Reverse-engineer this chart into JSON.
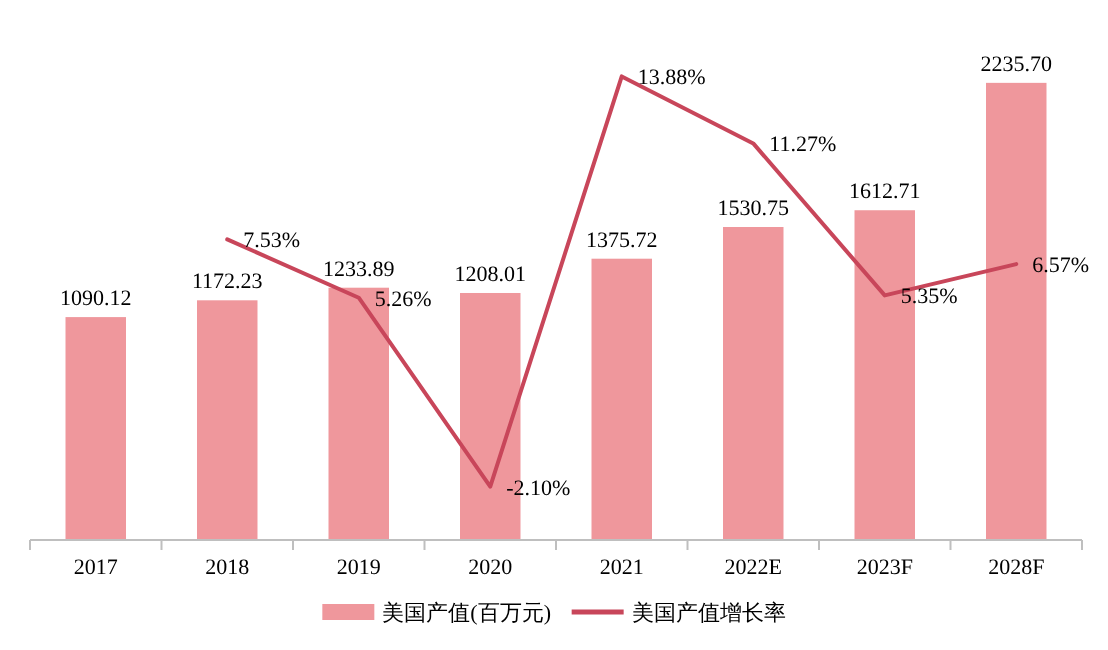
{
  "chart_data": {
    "type": "bar",
    "categories": [
      "2017",
      "2018",
      "2019",
      "2020",
      "2021",
      "2022E",
      "2023F",
      "2028F"
    ],
    "series": [
      {
        "name": "美国产值(百万元)",
        "color": "#ef979c",
        "values": [
          1090.12,
          1172.23,
          1233.89,
          1208.01,
          1375.72,
          1530.75,
          1612.71,
          2235.7
        ],
        "value_labels": [
          "1090.12",
          "1172.23",
          "1233.89",
          "1208.01",
          "1375.72",
          "1530.75",
          "1612.71",
          "2235.70"
        ]
      },
      {
        "name": "美国产值增长率",
        "type": "line",
        "axis": "y2",
        "color": "#c8465a",
        "values": [
          null,
          7.53,
          5.26,
          -2.1,
          13.88,
          11.27,
          5.35,
          6.57
        ],
        "value_labels": [
          null,
          "7.53%",
          "5.26%",
          "-2.10%",
          "13.88%",
          "11.27%",
          "5.35%",
          "6.57%"
        ]
      }
    ],
    "tick_labels": "x",
    "data_labels": true,
    "legend": "bottom",
    "marker": "none",
    "line_style": "solid"
  }
}
